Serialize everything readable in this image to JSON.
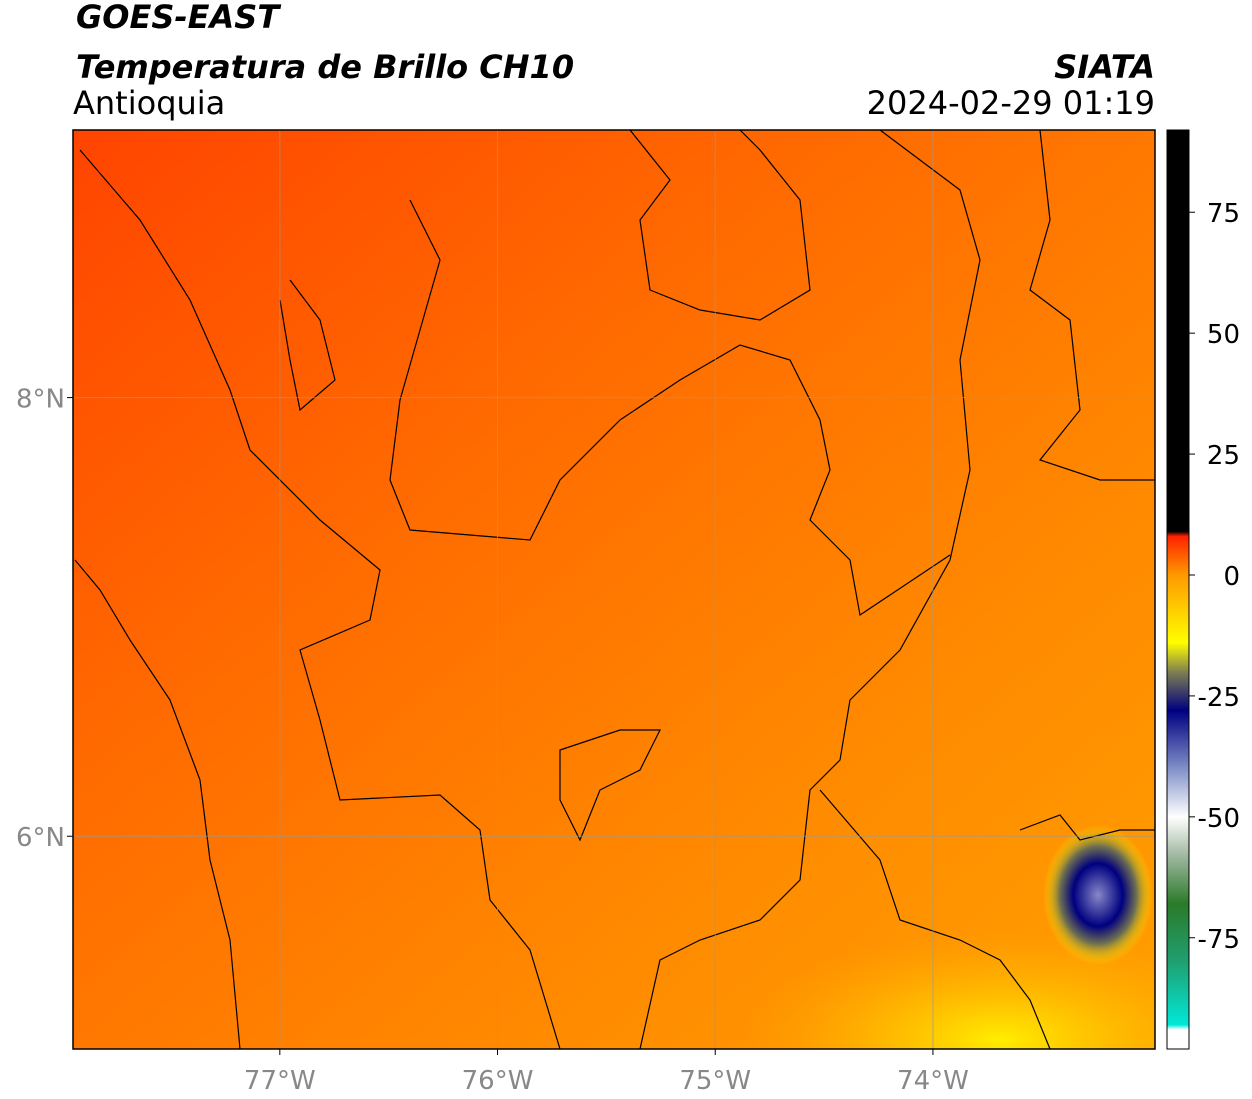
{
  "header": {
    "title": "GOES-EAST",
    "subtitle": "Temperatura de Brillo CH10",
    "region": "Antioquia",
    "source": "SIATA",
    "timestamp": "2024-02-29 01:19"
  },
  "map": {
    "xlim": [
      -77.95,
      -72.98
    ],
    "ylim": [
      5.03,
      9.22
    ],
    "xticks": [
      {
        "value": -77,
        "label": "77°W"
      },
      {
        "value": -76,
        "label": "76°W"
      },
      {
        "value": -75,
        "label": "75°W"
      },
      {
        "value": -74,
        "label": "74°W"
      }
    ],
    "yticks": [
      {
        "value": 8,
        "label": "8°N"
      },
      {
        "value": 6,
        "label": "6°N"
      }
    ],
    "grid": true
  },
  "colorbar": {
    "lim": [
      -98,
      92
    ],
    "ticks": [
      75,
      50,
      25,
      0,
      -25,
      -50,
      -75
    ],
    "stops": [
      {
        "value": -98,
        "color": "#ffffff"
      },
      {
        "value": -94,
        "color": "#ffffff"
      },
      {
        "value": -93,
        "color": "#00e8d8"
      },
      {
        "value": -80,
        "color": "#20a070"
      },
      {
        "value": -68,
        "color": "#2a7a2a"
      },
      {
        "value": -58,
        "color": "#a0b8a0"
      },
      {
        "value": -50,
        "color": "#ffffff"
      },
      {
        "value": -40,
        "color": "#8090c8"
      },
      {
        "value": -28,
        "color": "#000080"
      },
      {
        "value": -20,
        "color": "#808050"
      },
      {
        "value": -14,
        "color": "#ffff00"
      },
      {
        "value": 0,
        "color": "#ff9900"
      },
      {
        "value": 8,
        "color": "#ff2200"
      },
      {
        "value": 9,
        "color": "#000000"
      },
      {
        "value": 92,
        "color": "#000000"
      }
    ]
  }
}
